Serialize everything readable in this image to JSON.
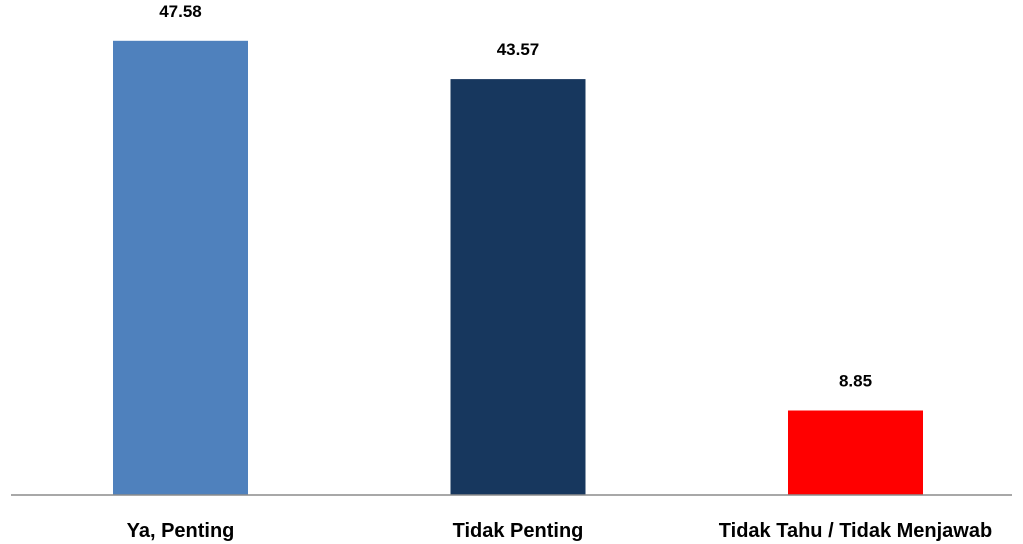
{
  "chart_data": {
    "type": "bar",
    "title": "",
    "xlabel": "",
    "ylabel": "",
    "categories": [
      "Ya, Penting",
      "Tidak Penting",
      "Tidak Tahu / Tidak Menjawab"
    ],
    "values": [
      47.58,
      43.57,
      8.85
    ],
    "value_labels": [
      "47.58",
      "43.57",
      "8.85"
    ],
    "colors": [
      "#4f81bd",
      "#17375e",
      "#ff0000"
    ],
    "ylim": [
      0,
      50
    ],
    "grid": false,
    "legend": "none"
  }
}
